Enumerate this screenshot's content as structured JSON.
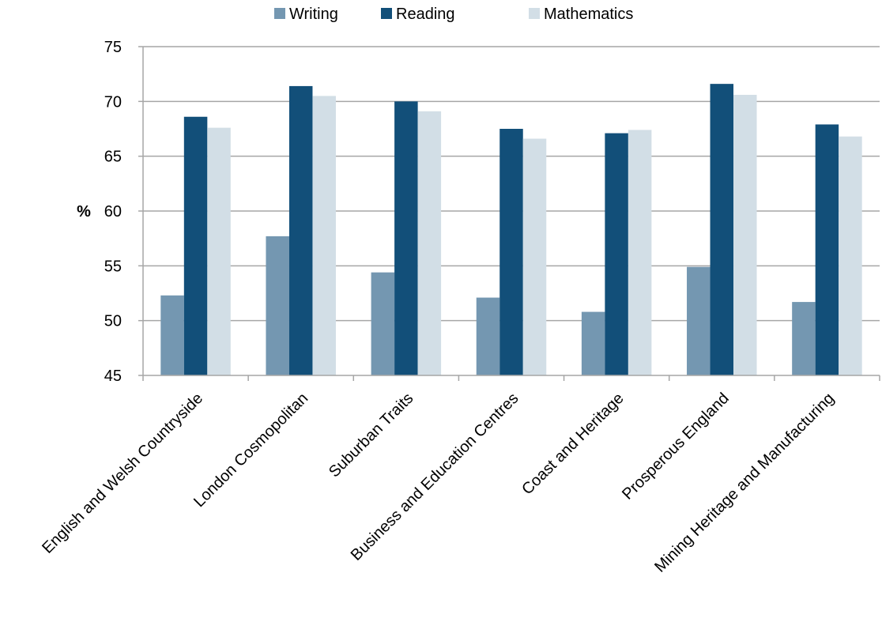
{
  "chart_data": {
    "type": "bar",
    "ylabel": "%",
    "ylim": [
      45,
      75
    ],
    "yticks": [
      45,
      50,
      55,
      60,
      65,
      70,
      75
    ],
    "grid": true,
    "legend_position": "top",
    "categories": [
      "English and Welsh Countryside",
      "London Cosmopolitan",
      "Suburban Traits",
      "Business and Education Centres",
      "Coast and Heritage",
      "Prosperous England",
      "Mining Heritage and Manufacturing"
    ],
    "series": [
      {
        "name": "Writing",
        "color": "#7497b1",
        "values": [
          52.3,
          57.7,
          54.4,
          52.1,
          50.8,
          54.9,
          51.7
        ]
      },
      {
        "name": "Reading",
        "color": "#124f79",
        "values": [
          68.6,
          71.4,
          70.0,
          67.5,
          67.1,
          71.6,
          67.9
        ]
      },
      {
        "name": "Mathematics",
        "color": "#d2dee6",
        "values": [
          67.6,
          70.5,
          69.1,
          66.6,
          67.4,
          70.6,
          66.8
        ]
      }
    ]
  }
}
